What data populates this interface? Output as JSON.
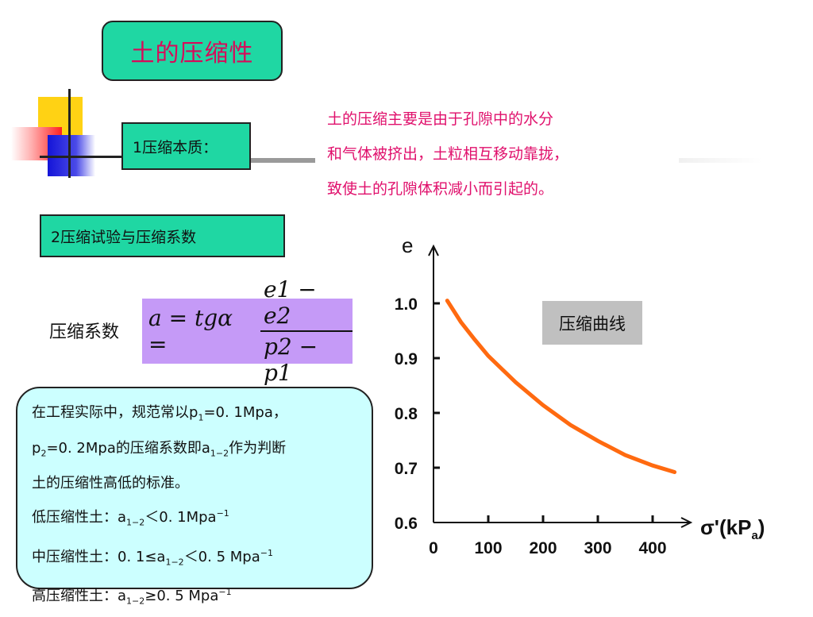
{
  "slide": {
    "title": "土的压缩性",
    "section1_label": "1压缩本质：",
    "section2_label": "2压缩试验与压缩系数",
    "description_lines": [
      "土的压缩主要是由于孔隙中的水分",
      "和气体被挤出，土粒相互移动靠拢，",
      "致使土的孔隙体积减小而引起的。"
    ],
    "coef_label": "压缩系数",
    "formula": {
      "lhs": "a = tgα =",
      "numerator": "e1 − e2",
      "denominator": "p2 − p1"
    },
    "info": {
      "line1_prefix": "在工程实际中，规范常以p",
      "line1_sub1": "1",
      "line1_mid": "=0. 1Mpa，",
      "line2_p": "p",
      "line2_sub2": "2",
      "line2_mid": "=0. 2Mpa的压缩系数即a",
      "line2_sub": "1−2",
      "line2_suffix": "作为判断",
      "line3": "土的压缩性高低的标准。",
      "low_prefix": "低压缩性土：a",
      "low_sub": "1−2",
      "low_rel": "＜0. 1Mpa",
      "low_sup": "−1",
      "mid_prefix": "中压缩性土：0. 1≤a",
      "mid_sub": "1−2",
      "mid_rel": "＜0. 5 Mpa",
      "mid_sup": "−1",
      "high_prefix": "高压缩性土：a",
      "high_sub": "1−2",
      "high_rel": "≥0. 5 Mpa",
      "high_sup": "−1"
    },
    "curve_label": "压缩曲线",
    "colors": {
      "title_bg": "#1fd7a3",
      "title_text": "#d80a5a",
      "desc_text": "#e0106c",
      "formula_bg": "#c59af7",
      "info_bg": "#ccffff",
      "curve": "#ff6a10",
      "badge_bg": "#c0c0c0"
    }
  },
  "chart_data": {
    "type": "line",
    "ylabel": "e",
    "xlabel_main": "σ'(kP",
    "xlabel_sub": "a",
    "xlabel_end": ")",
    "xlim": [
      0,
      450
    ],
    "ylim": [
      0.6,
      1.1
    ],
    "x_ticks": [
      0,
      100,
      200,
      300,
      400
    ],
    "x_tick_labels": [
      "0",
      "100",
      "200",
      "300",
      "400"
    ],
    "y_ticks": [
      0.6,
      0.7,
      0.8,
      0.9,
      1.0
    ],
    "y_tick_labels": [
      "0.6",
      "0.7",
      "0.8",
      "0.9",
      "1.0"
    ],
    "series": [
      {
        "x": [
          25,
          50,
          75,
          100,
          150,
          200,
          250,
          300,
          350,
          400,
          440
        ],
        "y": [
          1.005,
          0.966,
          0.934,
          0.904,
          0.856,
          0.814,
          0.778,
          0.749,
          0.723,
          0.704,
          0.692
        ]
      }
    ]
  }
}
